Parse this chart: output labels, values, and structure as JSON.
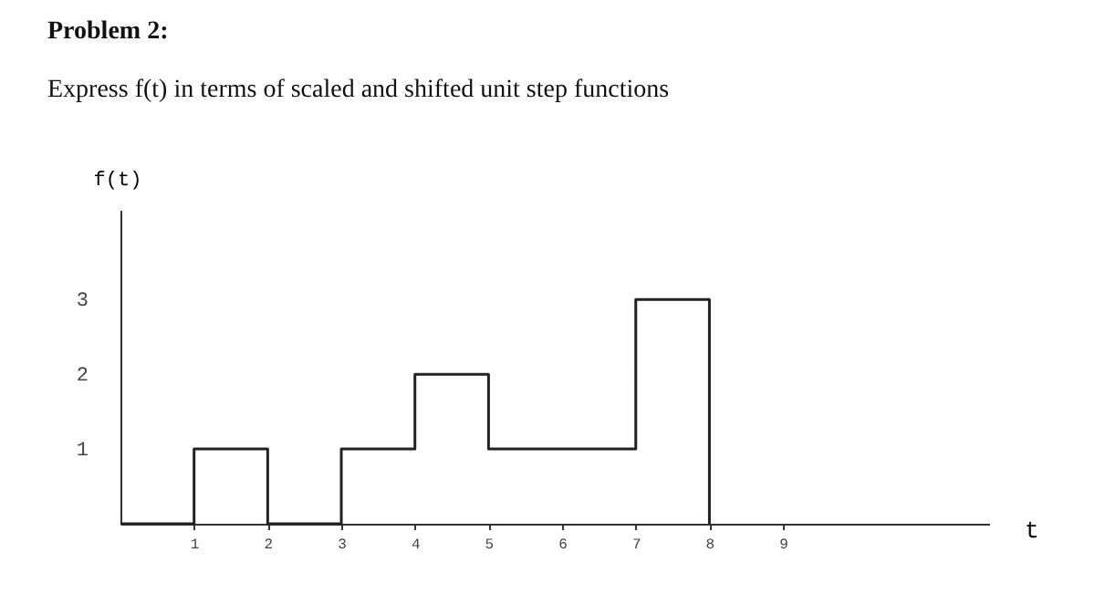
{
  "chart_data": {
    "type": "step",
    "title": "Problem 2:",
    "subtitle": "Express f(t) in terms of scaled and shifted unit step functions",
    "xlabel": "t",
    "ylabel": "f(t)",
    "x": [
      0,
      1,
      2,
      3,
      4,
      5,
      7,
      8
    ],
    "series": [
      {
        "color": "#222222",
        "values": [
          0,
          1,
          0,
          1,
          2,
          1,
          3,
          0
        ]
      }
    ],
    "xlim": [
      0,
      11.8
    ],
    "ylim": [
      0,
      4.2
    ],
    "xticks": [
      1,
      2,
      3,
      4,
      5,
      6,
      7,
      8,
      9
    ],
    "yticks": [
      1,
      2,
      3
    ],
    "grid": false,
    "marker": "none",
    "line_style": "solid"
  }
}
